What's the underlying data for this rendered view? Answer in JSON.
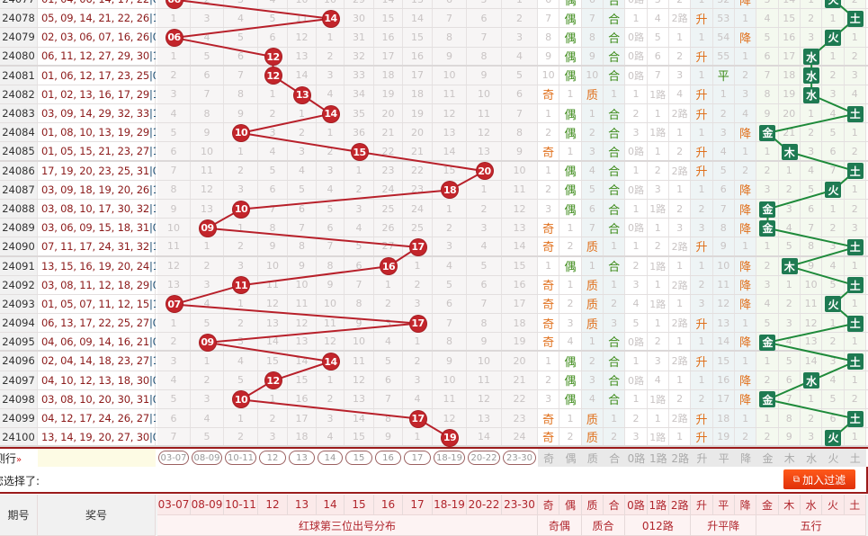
{
  "red_columns": [
    "03-07",
    "08-09",
    "10-11",
    "12",
    "13",
    "14",
    "15",
    "16",
    "17",
    "18-19",
    "20-22",
    "23-30"
  ],
  "right_columns": [
    "奇",
    "偶",
    "质",
    "合",
    "0路",
    "1路",
    "2路",
    "升",
    "平",
    "降",
    "金",
    "木",
    "水",
    "火",
    "土"
  ],
  "groups": {
    "red": "红球第三位出号分布",
    "oddeven": "奇偶",
    "prime": "质合",
    "mod3": "012路",
    "trend": "升平降",
    "wuxing": "五行"
  },
  "header": {
    "issue": "期号",
    "numbers": "奖号"
  },
  "filter": {
    "label": "测行",
    "toggle_icon": "»",
    "selected_label": "您选择了:",
    "add_button": "加入过滤"
  },
  "colors": {
    "ball": "#c3252b",
    "wuxing_box": "#1e7a52",
    "orange": "#e0701c",
    "green": "#3c8a18",
    "border": "#9b1b1b"
  },
  "rows": [
    {
      "issue": "24077",
      "numbers": "01, 04, 06, 14, 17, 22",
      "blue": "|06",
      "red": [
        "06",
        "2",
        "3",
        "4",
        "10",
        "10",
        "29",
        "14",
        "13",
        "6",
        "5",
        "1"
      ],
      "hit": 0,
      "right": [
        "6",
        "偶",
        "6",
        "合",
        "0路",
        "3",
        "2",
        "1",
        "52",
        "降",
        "3",
        "14",
        "1",
        "火",
        "2"
      ]
    },
    {
      "issue": "24078",
      "numbers": "05, 09, 14, 21, 22, 26",
      "blue": "|12",
      "red": [
        "1",
        "3",
        "4",
        "5",
        "11",
        "14",
        "30",
        "15",
        "14",
        "7",
        "6",
        "2"
      ],
      "hit": 5,
      "right": [
        "7",
        "偶",
        "7",
        "合",
        "1",
        "4",
        "2路",
        "升",
        "53",
        "1",
        "4",
        "15",
        "2",
        "1",
        "土"
      ]
    },
    {
      "issue": "24079",
      "numbers": "02, 03, 06, 07, 16, 26",
      "blue": "|04",
      "red": [
        "06",
        "4",
        "5",
        "6",
        "12",
        "1",
        "31",
        "16",
        "15",
        "8",
        "7",
        "3"
      ],
      "hit": 0,
      "right": [
        "8",
        "偶",
        "8",
        "合",
        "0路",
        "5",
        "1",
        "1",
        "54",
        "降",
        "5",
        "16",
        "3",
        "火",
        "1"
      ]
    },
    {
      "issue": "24080",
      "numbers": "06, 11, 12, 27, 29, 30",
      "blue": "|13",
      "red": [
        "1",
        "5",
        "6",
        "12",
        "13",
        "2",
        "32",
        "17",
        "16",
        "9",
        "8",
        "4"
      ],
      "hit": 3,
      "right": [
        "9",
        "偶",
        "9",
        "合",
        "0路",
        "6",
        "2",
        "升",
        "55",
        "1",
        "6",
        "17",
        "水",
        "1",
        "2"
      ]
    },
    {
      "issue": "24081",
      "numbers": "01, 06, 12, 17, 23, 25",
      "blue": "|04",
      "red": [
        "2",
        "6",
        "7",
        "12",
        "14",
        "3",
        "33",
        "18",
        "17",
        "10",
        "9",
        "5"
      ],
      "hit": 3,
      "right": [
        "10",
        "偶",
        "10",
        "合",
        "0路",
        "7",
        "3",
        "1",
        "平",
        "2",
        "7",
        "18",
        "水",
        "2",
        "3"
      ]
    },
    {
      "issue": "24082",
      "numbers": "01, 02, 13, 16, 17, 29",
      "blue": "|16",
      "red": [
        "3",
        "7",
        "8",
        "1",
        "13",
        "4",
        "34",
        "19",
        "18",
        "11",
        "10",
        "6"
      ],
      "hit": 4,
      "right": [
        "奇",
        "1",
        "质",
        "1",
        "1",
        "1路",
        "4",
        "升",
        "1",
        "3",
        "8",
        "19",
        "水",
        "3",
        "4"
      ]
    },
    {
      "issue": "24083",
      "numbers": "03, 09, 14, 29, 32, 33",
      "blue": "|15",
      "red": [
        "4",
        "8",
        "9",
        "2",
        "1",
        "14",
        "35",
        "20",
        "19",
        "12",
        "11",
        "7"
      ],
      "hit": 5,
      "right": [
        "1",
        "偶",
        "1",
        "合",
        "2",
        "1",
        "2路",
        "升",
        "2",
        "4",
        "9",
        "20",
        "1",
        "4",
        "土"
      ]
    },
    {
      "issue": "24084",
      "numbers": "01, 08, 10, 13, 19, 29",
      "blue": "|13",
      "red": [
        "5",
        "9",
        "10",
        "3",
        "2",
        "1",
        "36",
        "21",
        "20",
        "13",
        "12",
        "8"
      ],
      "hit": 2,
      "right": [
        "2",
        "偶",
        "2",
        "合",
        "3",
        "1路",
        "1",
        "1",
        "3",
        "降",
        "金",
        "21",
        "2",
        "5",
        "1"
      ]
    },
    {
      "issue": "24085",
      "numbers": "01, 05, 15, 21, 23, 27",
      "blue": "|15",
      "red": [
        "6",
        "10",
        "1",
        "4",
        "3",
        "2",
        "15",
        "22",
        "21",
        "14",
        "13",
        "9"
      ],
      "hit": 6,
      "right": [
        "奇",
        "1",
        "3",
        "合",
        "0路",
        "1",
        "2",
        "升",
        "4",
        "1",
        "1",
        "木",
        "3",
        "6",
        "2"
      ]
    },
    {
      "issue": "24086",
      "numbers": "17, 19, 20, 23, 25, 31",
      "blue": "|02",
      "red": [
        "7",
        "11",
        "2",
        "5",
        "4",
        "3",
        "1",
        "23",
        "22",
        "15",
        "20",
        "10"
      ],
      "hit": 10,
      "right": [
        "1",
        "偶",
        "4",
        "合",
        "1",
        "2",
        "2路",
        "升",
        "5",
        "2",
        "2",
        "1",
        "4",
        "7",
        "土"
      ]
    },
    {
      "issue": "24087",
      "numbers": "03, 09, 18, 19, 20, 26",
      "blue": "|11",
      "red": [
        "8",
        "12",
        "3",
        "6",
        "5",
        "4",
        "2",
        "24",
        "23",
        "18",
        "1",
        "11"
      ],
      "hit": 9,
      "right": [
        "2",
        "偶",
        "5",
        "合",
        "0路",
        "3",
        "1",
        "1",
        "6",
        "降",
        "3",
        "2",
        "5",
        "火",
        "1"
      ]
    },
    {
      "issue": "24088",
      "numbers": "03, 08, 10, 17, 30, 32",
      "blue": "|10",
      "red": [
        "9",
        "13",
        "10",
        "7",
        "6",
        "5",
        "3",
        "25",
        "24",
        "1",
        "2",
        "12"
      ],
      "hit": 2,
      "right": [
        "3",
        "偶",
        "6",
        "合",
        "1",
        "1路",
        "2",
        "2",
        "7",
        "降",
        "金",
        "3",
        "6",
        "1",
        "2"
      ]
    },
    {
      "issue": "24089",
      "numbers": "03, 06, 09, 15, 18, 31",
      "blue": "|01",
      "red": [
        "10",
        "09",
        "1",
        "8",
        "7",
        "6",
        "4",
        "26",
        "25",
        "2",
        "3",
        "13"
      ],
      "hit": 1,
      "right": [
        "奇",
        "1",
        "7",
        "合",
        "0路",
        "1",
        "3",
        "3",
        "8",
        "降",
        "金",
        "4",
        "7",
        "2",
        "3"
      ]
    },
    {
      "issue": "24090",
      "numbers": "07, 11, 17, 24, 31, 32",
      "blue": "|12",
      "red": [
        "11",
        "1",
        "2",
        "9",
        "8",
        "7",
        "5",
        "27",
        "17",
        "3",
        "4",
        "14"
      ],
      "hit": 8,
      "right": [
        "奇",
        "2",
        "质",
        "1",
        "1",
        "2",
        "2路",
        "升",
        "9",
        "1",
        "1",
        "5",
        "8",
        "3",
        "土"
      ]
    },
    {
      "issue": "24091",
      "numbers": "13, 15, 16, 19, 20, 24",
      "blue": "|10",
      "red": [
        "12",
        "2",
        "3",
        "10",
        "9",
        "8",
        "6",
        "16",
        "1",
        "4",
        "5",
        "15"
      ],
      "hit": 7,
      "right": [
        "1",
        "偶",
        "1",
        "合",
        "2",
        "1路",
        "1",
        "1",
        "10",
        "降",
        "2",
        "木",
        "9",
        "4",
        "1"
      ]
    },
    {
      "issue": "24092",
      "numbers": "03, 08, 11, 12, 18, 29",
      "blue": "|05",
      "red": [
        "13",
        "3",
        "11",
        "11",
        "10",
        "9",
        "7",
        "1",
        "2",
        "5",
        "6",
        "16"
      ],
      "hit": 2,
      "right": [
        "奇",
        "1",
        "质",
        "1",
        "3",
        "1",
        "2路",
        "2",
        "11",
        "降",
        "3",
        "1",
        "10",
        "5",
        "土"
      ]
    },
    {
      "issue": "24093",
      "numbers": "01, 05, 07, 11, 12, 15",
      "blue": "|12",
      "red": [
        "07",
        "4",
        "1",
        "12",
        "11",
        "10",
        "8",
        "2",
        "3",
        "6",
        "7",
        "17"
      ],
      "hit": 0,
      "right": [
        "奇",
        "2",
        "质",
        "2",
        "4",
        "1路",
        "1",
        "3",
        "12",
        "降",
        "4",
        "2",
        "11",
        "火",
        "1"
      ]
    },
    {
      "issue": "24094",
      "numbers": "06, 13, 17, 22, 25, 27",
      "blue": "|09",
      "red": [
        "1",
        "5",
        "2",
        "13",
        "12",
        "11",
        "9",
        "3",
        "17",
        "7",
        "8",
        "18"
      ],
      "hit": 8,
      "right": [
        "奇",
        "3",
        "质",
        "3",
        "5",
        "1",
        "2路",
        "升",
        "13",
        "1",
        "5",
        "3",
        "12",
        "1",
        "土"
      ]
    },
    {
      "issue": "24095",
      "numbers": "04, 06, 09, 14, 16, 21",
      "blue": "|03",
      "red": [
        "2",
        "09",
        "3",
        "14",
        "13",
        "12",
        "10",
        "4",
        "1",
        "8",
        "9",
        "19"
      ],
      "hit": 1,
      "right": [
        "奇",
        "4",
        "1",
        "合",
        "0路",
        "2",
        "1",
        "1",
        "14",
        "降",
        "金",
        "4",
        "13",
        "2",
        "1"
      ]
    },
    {
      "issue": "24096",
      "numbers": "02, 04, 14, 18, 23, 27",
      "blue": "|13",
      "red": [
        "3",
        "1",
        "4",
        "15",
        "14",
        "14",
        "11",
        "5",
        "2",
        "9",
        "10",
        "20"
      ],
      "hit": 5,
      "right": [
        "1",
        "偶",
        "2",
        "合",
        "1",
        "3",
        "2路",
        "升",
        "15",
        "1",
        "1",
        "5",
        "14",
        "3",
        "土"
      ]
    },
    {
      "issue": "24097",
      "numbers": "04, 10, 12, 13, 18, 30",
      "blue": "|03",
      "red": [
        "4",
        "2",
        "5",
        "12",
        "15",
        "1",
        "12",
        "6",
        "3",
        "10",
        "11",
        "21"
      ],
      "hit": 3,
      "right": [
        "2",
        "偶",
        "3",
        "合",
        "0路",
        "4",
        "1",
        "1",
        "16",
        "降",
        "2",
        "6",
        "水",
        "4",
        "1"
      ]
    },
    {
      "issue": "24098",
      "numbers": "03, 08, 10, 20, 30, 31",
      "blue": "|02",
      "red": [
        "5",
        "3",
        "10",
        "1",
        "16",
        "2",
        "13",
        "7",
        "4",
        "11",
        "12",
        "22"
      ],
      "hit": 2,
      "right": [
        "3",
        "偶",
        "4",
        "合",
        "1",
        "1路",
        "2",
        "2",
        "17",
        "降",
        "金",
        "7",
        "1",
        "5",
        "2"
      ]
    },
    {
      "issue": "24099",
      "numbers": "04, 12, 17, 24, 26, 27",
      "blue": "|16",
      "red": [
        "6",
        "4",
        "1",
        "2",
        "17",
        "3",
        "14",
        "8",
        "17",
        "12",
        "13",
        "23"
      ],
      "hit": 8,
      "right": [
        "奇",
        "1",
        "质",
        "1",
        "2",
        "1",
        "2路",
        "升",
        "18",
        "1",
        "1",
        "8",
        "2",
        "6",
        "土"
      ]
    },
    {
      "issue": "24100",
      "numbers": "13, 14, 19, 20, 27, 30",
      "blue": "|05",
      "red": [
        "7",
        "5",
        "2",
        "3",
        "18",
        "4",
        "15",
        "9",
        "1",
        "19",
        "14",
        "24"
      ],
      "hit": 9,
      "right": [
        "奇",
        "2",
        "质",
        "2",
        "3",
        "1路",
        "1",
        "升",
        "19",
        "2",
        "2",
        "9",
        "3",
        "火",
        "1"
      ]
    }
  ]
}
